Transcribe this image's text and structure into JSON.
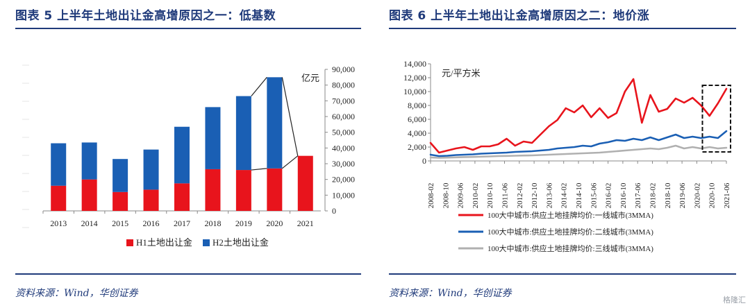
{
  "left": {
    "title": "图表 5   上半年土地出让金高增原因之一：低基数",
    "source": "资料来源：Wind，华创证券"
  },
  "right": {
    "title": "图表 6   上半年土地出让金高增原因之二：地价涨",
    "source": "资料来源：Wind，华创证券"
  },
  "colors": {
    "red": "#e8141c",
    "blue": "#1a5fb4",
    "gray": "#b0b0b0",
    "title": "#1f3a7a"
  },
  "chart_data": [
    {
      "type": "bar",
      "stacked": true,
      "categories": [
        "2013",
        "2014",
        "2015",
        "2016",
        "2017",
        "2018",
        "2019",
        "2020",
        "2021"
      ],
      "series": [
        {
          "name": "H1土地出让金",
          "color": "#e8141c",
          "values": [
            16000,
            20000,
            12000,
            13500,
            17500,
            26500,
            26000,
            27000,
            35000
          ]
        },
        {
          "name": "H2土地出让金",
          "color": "#1a5fb4",
          "values": [
            27000,
            23500,
            21000,
            25500,
            36000,
            39500,
            47000,
            58000,
            0
          ]
        }
      ],
      "ylabel": "亿元",
      "ylim": [
        0,
        90000
      ],
      "yticks": [
        0,
        10000,
        20000,
        30000,
        40000,
        50000,
        60000,
        70000,
        80000,
        90000
      ],
      "yaxis_side": "right",
      "legend_position": "bottom",
      "annotations": [
        "connector-lines-2019-2021"
      ]
    },
    {
      "type": "line",
      "unit_label": "元/平方米",
      "ylim": [
        0,
        14000
      ],
      "yticks": [
        0,
        2000,
        4000,
        6000,
        8000,
        10000,
        12000,
        14000
      ],
      "xtick_labels": [
        "2008-02",
        "2008-10",
        "2009-06",
        "2010-02",
        "2010-10",
        "2011-06",
        "2012-02",
        "2012-10",
        "2013-06",
        "2014-02",
        "2014-10",
        "2015-06",
        "2016-02",
        "2016-10",
        "2017-06",
        "2018-02",
        "2018-10",
        "2019-06",
        "2020-02",
        "2020-10",
        "2021-06"
      ],
      "x_start": "2008-02",
      "x_step_months": 4,
      "series": [
        {
          "name": "100大中城市:供应土地挂牌均价:一线城市(3MMA)",
          "color": "#e8141c",
          "values": [
            2600,
            1200,
            1500,
            1800,
            2000,
            1600,
            2100,
            2100,
            2400,
            3200,
            2200,
            2800,
            2600,
            3800,
            5000,
            5900,
            7600,
            7000,
            8000,
            6300,
            7600,
            6200,
            6900,
            10000,
            11800,
            5500,
            9500,
            7100,
            7500,
            9000,
            8400,
            9100,
            8000,
            6500,
            8300,
            10400
          ]
        },
        {
          "name": "100大中城市:供应土地挂牌均价:二线城市(3MMA)",
          "color": "#1a5fb4",
          "values": [
            900,
            700,
            750,
            850,
            900,
            950,
            1050,
            1100,
            1150,
            1200,
            1300,
            1350,
            1400,
            1500,
            1600,
            1800,
            1900,
            2000,
            2200,
            2100,
            2500,
            2700,
            3000,
            2900,
            3200,
            3000,
            3400,
            3000,
            3400,
            3800,
            3300,
            3500,
            3300,
            3500,
            3300,
            4300
          ]
        },
        {
          "name": "100大中城市:供应土地挂牌均价:三线城市(3MMA)",
          "color": "#b0b0b0",
          "values": [
            500,
            450,
            480,
            520,
            560,
            580,
            620,
            650,
            700,
            720,
            750,
            780,
            800,
            850,
            900,
            950,
            1000,
            1050,
            1100,
            1150,
            1200,
            1300,
            1400,
            1500,
            1600,
            1700,
            1800,
            1700,
            1900,
            2200,
            1800,
            2000,
            1800,
            2000,
            1800,
            1900
          ]
        }
      ],
      "legend_position": "bottom",
      "annotations": [
        "dashed-box-highlight-2020-10-to-2021-06"
      ]
    }
  ],
  "watermark": "格隆汇"
}
